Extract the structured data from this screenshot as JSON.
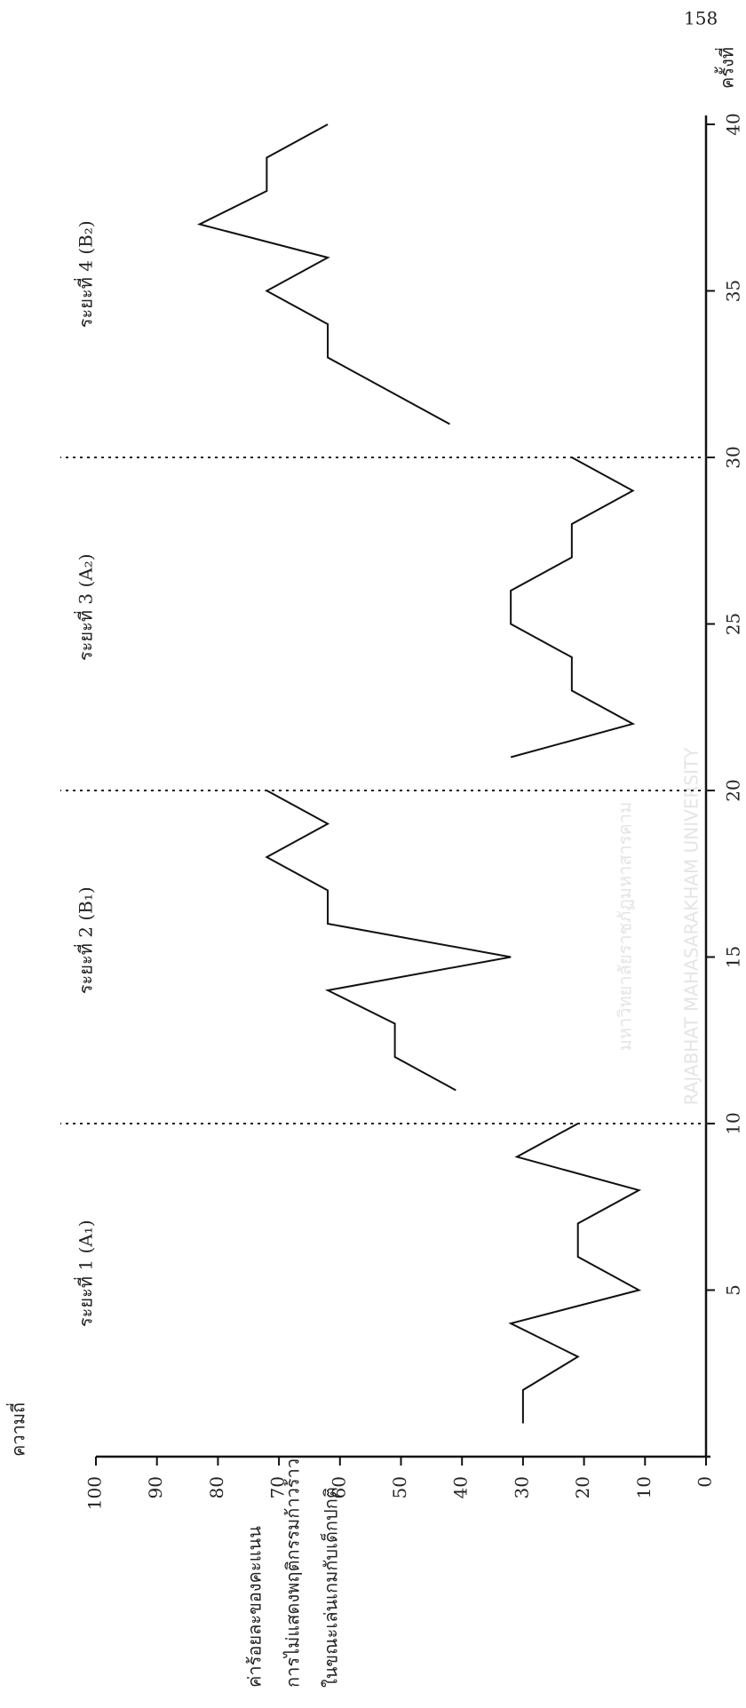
{
  "page_number": "158",
  "watermark": [
    "มหาวิทยาลัยราชภัฏมหาสารคาม",
    "RAJABHAT MAHASARAKHAM UNIVERSITY"
  ],
  "chart_data": {
    "type": "line",
    "y_label_top": "ความถี่",
    "x_label": "ครั้งที่",
    "y_label": [
      "ค่าร้อยละของคะแนน",
      "การไม่แสดงพฤติกรรมก้าวร้าว",
      "ในขณะเล่นเกมกับเด็กปกติ"
    ],
    "xlim": [
      0,
      40
    ],
    "xticks": [
      5,
      10,
      15,
      20,
      25,
      30,
      35,
      40
    ],
    "ylim": [
      0,
      100
    ],
    "yticks": [
      0,
      10,
      20,
      30,
      40,
      50,
      60,
      70,
      80,
      90,
      100
    ],
    "phase_lines": [
      10,
      20,
      30
    ],
    "color": "#111111",
    "grid": false,
    "series": [
      {
        "name": "ระยะที่ 1 (A₁)",
        "x": [
          1,
          2,
          3,
          4,
          5,
          6,
          7,
          8,
          9,
          10
        ],
        "values": [
          30,
          30,
          21,
          32,
          11,
          21,
          21,
          11,
          31,
          21
        ]
      },
      {
        "name": "ระยะที่ 2 (B₁)",
        "x": [
          11,
          12,
          13,
          14,
          15,
          16,
          17,
          18,
          19,
          20
        ],
        "values": [
          41,
          51,
          51,
          62,
          32,
          62,
          62,
          72,
          62,
          72
        ]
      },
      {
        "name": "ระยะที่ 3 (A₂)",
        "x": [
          21,
          22,
          23,
          24,
          25,
          26,
          27,
          28,
          29,
          30
        ],
        "values": [
          32,
          12,
          22,
          22,
          32,
          32,
          22,
          22,
          12,
          22
        ]
      },
      {
        "name": "ระยะที่ 4 (B₂)",
        "x": [
          31,
          32,
          33,
          34,
          35,
          36,
          37,
          38,
          39,
          40
        ],
        "values": [
          42,
          52,
          62,
          62,
          72,
          62,
          83,
          72,
          72,
          62
        ]
      }
    ]
  }
}
